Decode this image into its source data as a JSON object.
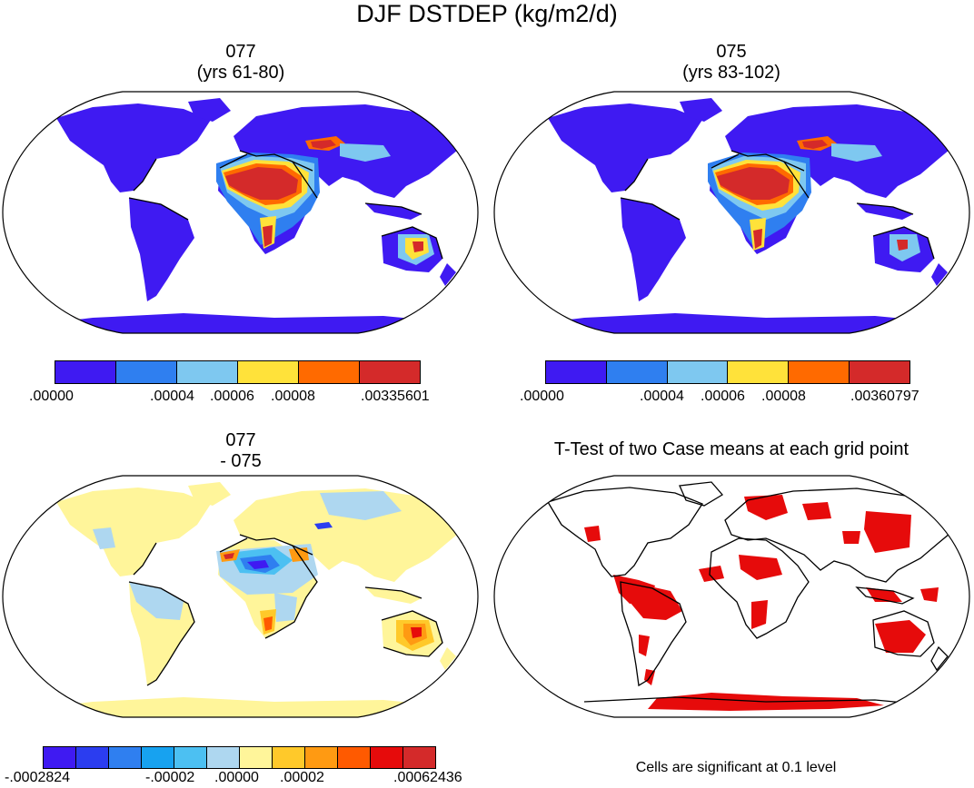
{
  "figure": {
    "title": "DJF DSTDEP (kg/m2/d)",
    "panels": [
      {
        "line1": "077",
        "line2": "(yrs 61-80)"
      },
      {
        "line1": "075",
        "line2": "(yrs 83-102)"
      },
      {
        "line1": "077",
        "line2": "- 075"
      },
      {
        "line1": "T-Test of two Case means at each grid point"
      }
    ],
    "colorbar1": {
      "colors": [
        "#3f1af2",
        "#2f7ff0",
        "#7ec8f0",
        "#ffe23a",
        "#ff6a00",
        "#d42a2a"
      ],
      "labels": [
        ".00000",
        ".00004",
        ".00006",
        ".00008",
        ".00335601"
      ]
    },
    "colorbar2": {
      "colors": [
        "#3f1af2",
        "#2f7ff0",
        "#7ec8f0",
        "#ffe23a",
        "#ff6a00",
        "#d42a2a"
      ],
      "labels": [
        ".00000",
        ".00004",
        ".00006",
        ".00008",
        ".00360797"
      ]
    },
    "colorbar3": {
      "colors": [
        "#3f1af2",
        "#2b3df0",
        "#2f7ff0",
        "#17a2f0",
        "#4cc0f2",
        "#aed7f0",
        "#fff59a",
        "#ffc92a",
        "#ff9a12",
        "#ff5a00",
        "#e60b0b",
        "#d42a2a"
      ],
      "labels": [
        "-.0002824",
        "-.00002",
        ".00000",
        ".00002",
        ".00062436"
      ]
    },
    "significance_note": "Cells are significant at 0.1 level",
    "colors": {
      "land_blue": "#3f1af2",
      "sig_red": "#e60b0b",
      "diff_yellow": "#fff59a"
    }
  }
}
